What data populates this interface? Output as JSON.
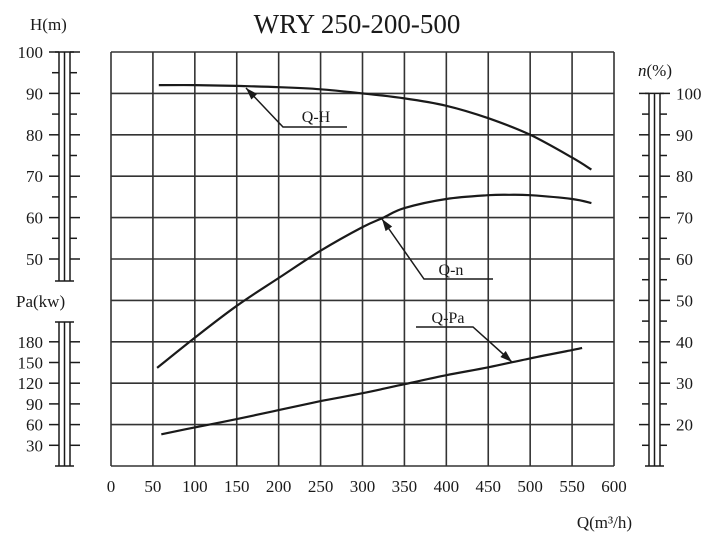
{
  "chart_data": {
    "type": "line",
    "title": "WRY 250-200-500",
    "xlabel": "Q(m³/h)",
    "xlim": [
      0,
      600
    ],
    "x_ticks": [
      0,
      50,
      100,
      150,
      200,
      250,
      300,
      350,
      400,
      450,
      500,
      550,
      600
    ],
    "grid": true,
    "axes": {
      "H": {
        "label": "H(m)",
        "side": "left-top",
        "ticks": [
          100,
          90,
          80,
          70,
          60,
          50
        ],
        "range": [
          45,
          100
        ]
      },
      "Pa": {
        "label": "Pa(kw)",
        "side": "left-bottom",
        "ticks": [
          180,
          150,
          120,
          90,
          60,
          30
        ],
        "range": [
          0,
          210
        ]
      },
      "n": {
        "label_italic": "n",
        "label_rest": "(%)",
        "side": "right",
        "ticks": [
          100,
          90,
          80,
          70,
          60,
          50,
          40,
          30,
          20
        ],
        "range": [
          10,
          100
        ]
      }
    },
    "series": [
      {
        "name": "Q-H",
        "axis": "H",
        "x": [
          57,
          100,
          150,
          200,
          250,
          300,
          350,
          400,
          450,
          500,
          550,
          573
        ],
        "values": [
          92.0,
          92.0,
          91.8,
          91.5,
          91.0,
          90.0,
          88.8,
          87.0,
          84.0,
          80.0,
          74.5,
          71.6
        ]
      },
      {
        "name": "Q-n",
        "axis": "n",
        "x": [
          55,
          100,
          150,
          200,
          250,
          300,
          325,
          350,
          400,
          450,
          475,
          500,
          550,
          573
        ],
        "values": [
          33.7,
          41.0,
          48.7,
          55.4,
          62.0,
          67.7,
          70.0,
          72.3,
          74.5,
          75.4,
          75.5,
          75.4,
          74.5,
          73.5
        ]
      },
      {
        "name": "Q-Pa",
        "axis": "Pa",
        "x": [
          60,
          100,
          150,
          200,
          250,
          300,
          350,
          400,
          450,
          500,
          550,
          562
        ],
        "values": [
          46,
          56,
          68,
          81,
          94,
          105.5,
          118.5,
          131.6,
          143,
          156,
          168,
          171
        ]
      }
    ],
    "annotations": [
      {
        "text": "Q-H",
        "points_to_x": 160
      },
      {
        "text": "Q-n",
        "points_to_x": 325
      },
      {
        "text": "Q-Pa",
        "points_to_x": 475
      }
    ]
  },
  "colors": {
    "line": "#1a1a1a",
    "grid": "#333333",
    "background": "#ffffff"
  }
}
